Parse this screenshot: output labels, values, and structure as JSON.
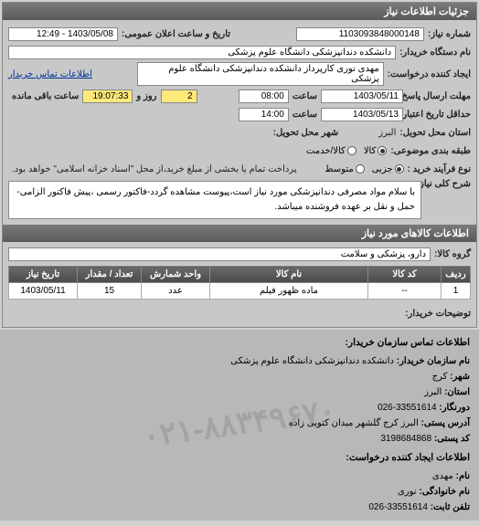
{
  "header": {
    "title": "جزئیات اطلاعات نیاز"
  },
  "fields": {
    "need_no_label": "شماره نیاز:",
    "need_no": "1103093848000148",
    "announce_label": "تاریخ و ساعت اعلان عمومی:",
    "announce": "1403/05/08 - 12:49",
    "buyer_dev_label": "نام دستگاه خریدار:",
    "buyer_dev": "دانشکده دندانپزشکی دانشگاه علوم پزشکی",
    "creator_label": "ایجاد کننده درخواست:",
    "creator": "مهدی نوری کارپرداز دانشکده دندانپزشکی دانشگاه علوم پزشکی",
    "contact_link": "اطلاعات تماس خریدار",
    "deadline_label": "مهلت ارسال پاسخ:",
    "deadline_to_label": "تا تاریخ:",
    "deadline_date": "1403/05/11",
    "time_label": "ساعت",
    "deadline_time": "08:00",
    "days_remain": "2",
    "days_label": "روز و",
    "time_remain": "19:07:33",
    "remain_label": "ساعت باقی مانده",
    "min_valid_label": "حداقل تاریخ اعتبار قیمت: تا تاریخ:",
    "min_valid_date": "1403/05/13",
    "min_valid_time": "14:00",
    "province_label": "استان محل تحویل:",
    "province": "البرز",
    "city_label": "شهر محل تحویل:",
    "goods_class_label": "طبقه بندی موضوعی:",
    "goods_opts": {
      "kala": "کالا",
      "khadamat": "کالا/خدمت"
    },
    "buy_process_label": "نوع فرآیند خرید :",
    "process_opts": {
      "low": "جزیی",
      "mid": "متوسط"
    },
    "process_note": "پرداخت تمام یا بخشی از مبلغ خرید،از محل \"اسناد خزانه اسلامی\" خواهد بود.",
    "desc_label": "شرح کلی نیاز:",
    "desc": "با سلام مواد مصرفی دندانپزشکی مورد نیاز است،پیوست مشاهده گردد-فاکتور رسمی ،پیش فاکتور الزامی-حمل و نقل بر عهده فروشنده میباشد.",
    "group_header": "اطلاعات کالاهای مورد نیاز",
    "group_label": "گروه کالا:",
    "group_value": "دارو، پزشکی و سلامت",
    "notes_label": "توضیحات خریدار:"
  },
  "table": {
    "headers": {
      "row": "ردیف",
      "code": "کد کالا",
      "name": "نام کالا",
      "unit": "واحد شمارش",
      "qty": "تعداد / مقدار",
      "date": "تاریخ نیاز"
    },
    "rows": [
      {
        "row": "1",
        "code": "--",
        "name": "ماده ظهور فیلم",
        "unit": "عدد",
        "qty": "15",
        "date": "1403/05/11"
      }
    ]
  },
  "buyer": {
    "header": "اطلاعات تماس سازمان خریدار:",
    "org_label": "نام سازمان خریدار:",
    "org": "دانشکده دندانپزشکی دانشگاه علوم پزشکی",
    "city_label": "شهر:",
    "city": "کرج",
    "province_label": "استان:",
    "province": "البرز",
    "fax_label": "دورنگار:",
    "fax": "33551614-026",
    "addr_label": "آدرس پستی:",
    "addr": "البرز کرج گلشهر میدان کتویی زاده",
    "post_label": "کد پستی:",
    "post": "3198684868",
    "creator_hd": "اطلاعات ایجاد کننده درخواست:",
    "name_label": "نام:",
    "name": "مهدی",
    "lname_label": "نام خانوادگی:",
    "lname": "نوری",
    "tel_label": "تلفن ثابت:",
    "tel": "33551614-026"
  },
  "watermark": "۰۲۱-۸۸۳۴۹۶۷۰"
}
